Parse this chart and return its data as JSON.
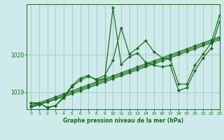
{
  "title": "Graphe pression niveau de la mer (hPa)",
  "background_color": "#ceeaea",
  "grid_color": "#a8cccc",
  "line_color": "#1a6b1a",
  "xlim": [
    -0.5,
    23
  ],
  "ylim": [
    1018.55,
    1021.35
  ],
  "yticks": [
    1019,
    1020
  ],
  "xticks": [
    0,
    1,
    2,
    3,
    4,
    5,
    6,
    7,
    8,
    9,
    10,
    11,
    12,
    13,
    14,
    15,
    16,
    17,
    18,
    19,
    20,
    21,
    22,
    23
  ],
  "series_main": [
    1018.72,
    1018.72,
    1018.58,
    1018.65,
    1018.88,
    1019.18,
    1019.38,
    1019.45,
    1019.32,
    1019.38,
    1021.25,
    1019.75,
    1019.95,
    1020.05,
    1019.8,
    1019.72,
    1019.68,
    1019.72,
    1019.05,
    1019.12,
    1019.58,
    1019.92,
    1020.18,
    1020.88
  ],
  "series_smooth1": [
    1018.72,
    1018.7,
    1018.6,
    1018.65,
    1018.85,
    1019.15,
    1019.32,
    1019.42,
    1019.35,
    1019.45,
    1019.85,
    1020.72,
    1020.02,
    1020.18,
    1020.38,
    1020.08,
    1019.92,
    1019.88,
    1019.22,
    1019.22,
    1019.72,
    1020.02,
    1020.32,
    1021.05
  ],
  "series_trend1": [
    1018.65,
    1018.72,
    1018.8,
    1018.88,
    1018.96,
    1019.04,
    1019.12,
    1019.2,
    1019.28,
    1019.36,
    1019.44,
    1019.52,
    1019.6,
    1019.68,
    1019.76,
    1019.84,
    1019.92,
    1020.0,
    1020.08,
    1020.16,
    1020.24,
    1020.32,
    1020.4,
    1020.48
  ],
  "series_trend2": [
    1018.62,
    1018.69,
    1018.76,
    1018.84,
    1018.92,
    1019.0,
    1019.08,
    1019.16,
    1019.24,
    1019.32,
    1019.4,
    1019.48,
    1019.56,
    1019.64,
    1019.72,
    1019.8,
    1019.88,
    1019.96,
    1020.04,
    1020.12,
    1020.2,
    1020.28,
    1020.36,
    1020.44
  ],
  "series_trend3": [
    1018.6,
    1018.67,
    1018.74,
    1018.81,
    1018.88,
    1018.96,
    1019.04,
    1019.12,
    1019.2,
    1019.28,
    1019.36,
    1019.44,
    1019.52,
    1019.6,
    1019.68,
    1019.76,
    1019.84,
    1019.92,
    1020.0,
    1020.08,
    1020.16,
    1020.24,
    1020.32,
    1020.4
  ]
}
